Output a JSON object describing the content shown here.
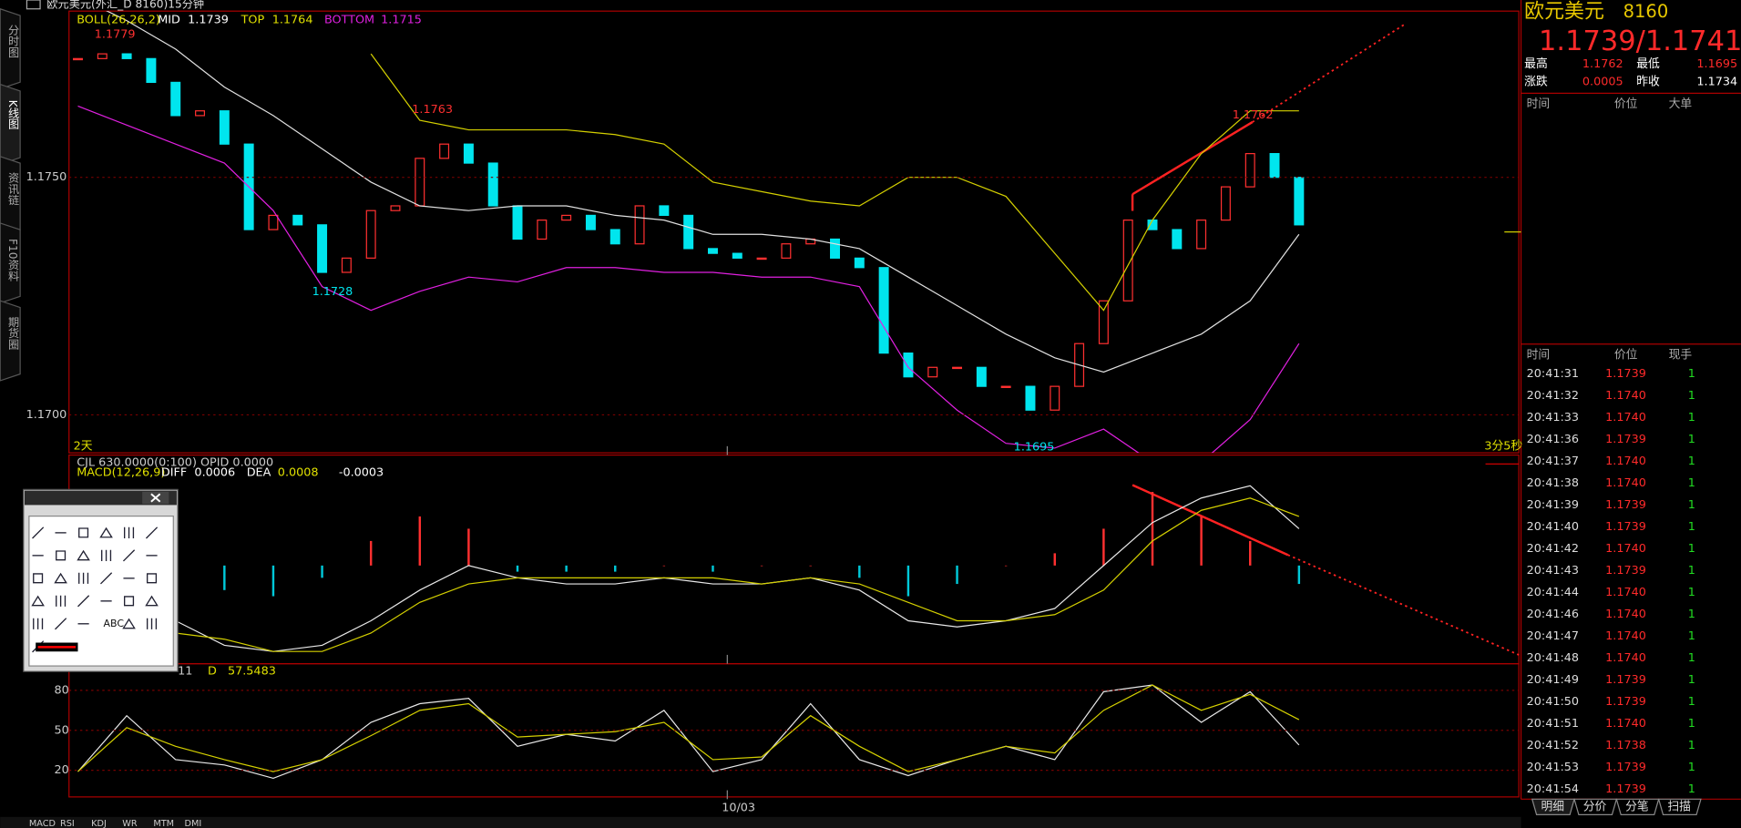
{
  "window": {
    "title": "欧元美元(外汇_D 8160)15分钟"
  },
  "sidebar": {
    "tabs": [
      "分时图",
      "K线图",
      "资讯链",
      "F10资料",
      "期货圈"
    ]
  },
  "price_chart": {
    "type": "candlestick",
    "legend": {
      "name": "BOLL(26,26,2)",
      "items": [
        {
          "label": "MID",
          "value": "1.1739"
        },
        {
          "label": "TOP",
          "value": "1.1764"
        },
        {
          "label": "BOTTOM",
          "value": "1.1715"
        }
      ]
    },
    "ylim": [
      1.1692,
      1.1785
    ],
    "yticks": [
      {
        "value": 1.175,
        "label": "1.1750"
      },
      {
        "value": 1.17,
        "label": "1.1700"
      }
    ],
    "closes": [
      1.1775,
      1.1776,
      1.1775,
      1.177,
      1.1763,
      1.1764,
      1.1757,
      1.1739,
      1.1742,
      1.174,
      1.173,
      1.1733,
      1.1743,
      1.1744,
      1.1754,
      1.1757,
      1.1753,
      1.1744,
      1.1737,
      1.1741,
      1.1742,
      1.1739,
      1.1736,
      1.1744,
      1.1742,
      1.1735,
      1.1734,
      1.1733,
      1.1733,
      1.1736,
      1.1737,
      1.1733,
      1.1731,
      1.1713,
      1.1708,
      1.171,
      1.171,
      1.1706,
      1.1706,
      1.1701,
      1.1706,
      1.1715,
      1.1724,
      1.1741,
      1.1739,
      1.1735,
      1.1741,
      1.1748,
      1.1755,
      1.175,
      1.174
    ],
    "mid": [
      1.1788,
      1.1783,
      1.1777,
      1.1769,
      1.1763,
      1.1756,
      1.1749,
      1.1744,
      1.1743,
      1.1744,
      1.1744,
      1.1742,
      1.1741,
      1.1738,
      1.1738,
      1.1737,
      1.1735,
      1.1729,
      1.1723,
      1.1717,
      1.1712,
      1.1709,
      1.1713,
      1.1717,
      1.1724,
      1.1738
    ],
    "top": [
      null,
      null,
      null,
      null,
      null,
      null,
      1.1776,
      1.1762,
      1.176,
      1.176,
      1.176,
      1.1759,
      1.1757,
      1.1749,
      1.1747,
      1.1745,
      1.1744,
      1.175,
      1.175,
      1.1746,
      1.1734,
      1.1722,
      1.1741,
      1.1755,
      1.1764,
      1.1764
    ],
    "bottom": [
      1.1765,
      1.1761,
      1.1757,
      1.1753,
      1.1743,
      1.1727,
      1.1722,
      1.1726,
      1.1729,
      1.1728,
      1.1731,
      1.1731,
      1.173,
      1.173,
      1.1729,
      1.1729,
      1.1727,
      1.171,
      1.1701,
      1.1694,
      1.1693,
      1.1697,
      1.169,
      1.169,
      1.1699,
      1.1715
    ],
    "annotations": [
      {
        "text": "1.1779"
      },
      {
        "text": "1.1763"
      },
      {
        "text": "1.1728"
      },
      {
        "text": "1.1695"
      },
      {
        "text": "1.1762"
      }
    ],
    "left_label": "2天",
    "right_label": "3分5秒",
    "x_label": "10/03"
  },
  "macd_chart": {
    "header": "CJL  630.0000(0:100)   OPID  0.0000",
    "legend": {
      "name": "MACD(12,26,9)",
      "items": [
        {
          "label": "DIFF",
          "value": "0.0006"
        },
        {
          "label": "DEA",
          "value": "0.0008"
        },
        {
          "value": "-0.0003"
        }
      ]
    },
    "ylim": [
      -0.0016,
      0.0018
    ],
    "diff": [
      -0.0009,
      -0.0013,
      -0.0009,
      -0.0013,
      -0.0014,
      -0.0013,
      -0.0009,
      -0.0004,
      0.0,
      -0.0002,
      -0.0003,
      -0.0003,
      -0.0002,
      -0.0003,
      -0.0003,
      -0.0002,
      -0.0004,
      -0.0009,
      -0.001,
      -0.0009,
      -0.0007,
      0.0,
      0.0007,
      0.0011,
      0.0013,
      0.0006
    ],
    "dea": [
      -0.0009,
      -0.001,
      -0.0011,
      -0.0012,
      -0.0014,
      -0.0014,
      -0.0011,
      -0.0006,
      -0.0003,
      -0.0002,
      -0.0002,
      -0.0002,
      -0.0002,
      -0.0002,
      -0.0003,
      -0.0002,
      -0.0003,
      -0.0006,
      -0.0009,
      -0.0009,
      -0.0008,
      -0.0004,
      0.0004,
      0.0009,
      0.0011,
      0.0008
    ],
    "hist": [
      0.0,
      -0.0001,
      -0.0002,
      -0.0004,
      -0.0005,
      -0.0002,
      0.0004,
      0.0008,
      0.0006,
      -0.0001,
      -0.0001,
      -0.0001,
      0.0,
      -0.0001,
      0.0,
      0.0,
      -0.0002,
      -0.0005,
      -0.0003,
      0.0,
      0.0002,
      0.0006,
      0.0012,
      0.0008,
      0.0004,
      -0.0003
    ]
  },
  "kdj_chart": {
    "legend": {
      "partial": "11",
      "items": [
        {
          "label": "D",
          "value": "57.5483"
        }
      ]
    },
    "ylim": [
      0,
      100
    ],
    "yticks": [
      20,
      50,
      80
    ],
    "k": [
      19,
      61,
      28,
      24,
      14,
      28,
      56,
      70,
      74,
      38,
      47,
      42,
      65,
      19,
      28,
      70,
      28,
      16,
      28,
      38,
      28,
      79,
      84,
      56,
      79,
      39
    ],
    "d": [
      19,
      52,
      38,
      28,
      19,
      28,
      46,
      65,
      70,
      45,
      47,
      49,
      56,
      28,
      30,
      61,
      38,
      19,
      28,
      38,
      33,
      65,
      84,
      65,
      77,
      58
    ]
  },
  "indicator_tabs": [
    "MACD",
    "RSI",
    "KDJ",
    "WR",
    "MTM",
    "DMI"
  ],
  "quote": {
    "name": "欧元美元",
    "code": "8160",
    "price": "1.1739/1.1741",
    "stats": [
      {
        "label": "最高",
        "value": "1.1762"
      },
      {
        "label": "最低",
        "value": "1.1695"
      },
      {
        "label": "涨跌",
        "value": "0.0005"
      },
      {
        "label": "昨收",
        "value": "1.1734"
      }
    ]
  },
  "big_orders": {
    "columns": [
      "时间",
      "价位",
      "大单"
    ]
  },
  "ticks": {
    "columns": [
      "时间",
      "价位",
      "现手"
    ],
    "rows": [
      [
        "20:41:31",
        "1.1739",
        1
      ],
      [
        "20:41:32",
        "1.1740",
        1
      ],
      [
        "20:41:33",
        "1.1740",
        1
      ],
      [
        "20:41:36",
        "1.1739",
        1
      ],
      [
        "20:41:37",
        "1.1740",
        1
      ],
      [
        "20:41:38",
        "1.1740",
        1
      ],
      [
        "20:41:39",
        "1.1739",
        1
      ],
      [
        "20:41:40",
        "1.1739",
        1
      ],
      [
        "20:41:42",
        "1.1740",
        1
      ],
      [
        "20:41:43",
        "1.1739",
        1
      ],
      [
        "20:41:44",
        "1.1740",
        1
      ],
      [
        "20:41:46",
        "1.1740",
        1
      ],
      [
        "20:41:47",
        "1.1740",
        1
      ],
      [
        "20:41:48",
        "1.1740",
        1
      ],
      [
        "20:41:49",
        "1.1739",
        1
      ],
      [
        "20:41:50",
        "1.1739",
        1
      ],
      [
        "20:41:51",
        "1.1740",
        1
      ],
      [
        "20:41:52",
        "1.1738",
        1
      ],
      [
        "20:41:53",
        "1.1739",
        1
      ],
      [
        "20:41:54",
        "1.1739",
        1
      ]
    ]
  },
  "bottom_tabs": [
    "明细",
    "分价",
    "分笔",
    "扫描"
  ],
  "toolbox": {
    "text_tool": "ABC"
  }
}
